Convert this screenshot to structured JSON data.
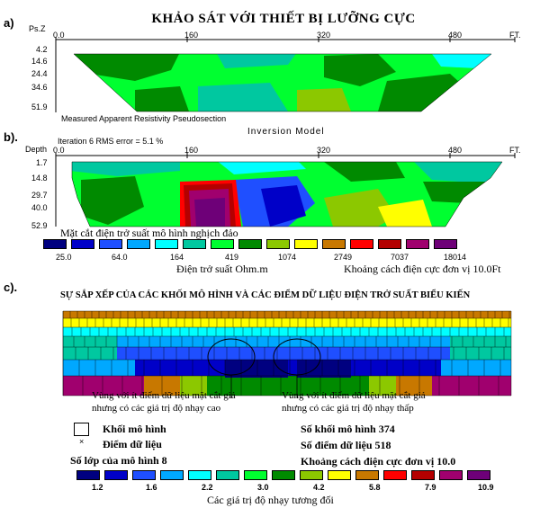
{
  "colors": {
    "scale": [
      "#000080",
      "#0000c8",
      "#1f4fff",
      "#00a8ff",
      "#00ffff",
      "#00c8a0",
      "#00ff30",
      "#008a00",
      "#8cc800",
      "#ffff00",
      "#c87800",
      "#ff0000",
      "#b40000",
      "#a0006e",
      "#6e0078"
    ]
  },
  "panel_a": {
    "tag": "a)",
    "title": "KHẢO SÁT VỚI THIẾT BỊ LƯỠNG CỰC",
    "depth_header": "Ps.Z",
    "x_ticks": [
      "0.0",
      "160",
      "320",
      "480"
    ],
    "x_unit": "FT.",
    "depth_ticks": [
      "4.2",
      "14.6",
      "24.4",
      "34.6",
      "51.9"
    ],
    "caption": "Measured Apparent Resistivity Pseudosection"
  },
  "panel_b": {
    "tag": "b).",
    "title": "Inversion Model",
    "iteration": "Iteration 6 RMS error = 5.1 %",
    "depth_header": "Depth",
    "x_ticks": [
      "0.0",
      "160",
      "320",
      "480"
    ],
    "x_unit": "FT.",
    "depth_ticks": [
      "1.7",
      "14.8",
      "29.7",
      "40.0",
      "52.9"
    ],
    "section_title": "Mặt cắt điện trở suất mô hình nghịch đảo",
    "scale_labels": [
      "25.0",
      "64.0",
      "164",
      "419",
      "1074",
      "2749",
      "7037",
      "18014"
    ],
    "unit_label": "Điện trở suất Ohm.m",
    "spacing_label": "Khoảng cách điện cực đơn vị 10.0Ft"
  },
  "panel_c": {
    "tag": "c).",
    "title": "SỰ SẮP XẾP CỦA CÁC KHỐI MÔ HÌNH VÀ CÁC ĐIỂM DỮ LIỆU ĐIỆN TRỞ SUẤT BIỂU KIẾN",
    "annotation_left_1": "Vùng với ít điểm dữ liệu mặt cắt giả",
    "annotation_left_2": "nhưng có các giá trị độ nhạy cao",
    "annotation_right_1": "Vùng với ít điểm dữ liệu mặt cắt giả",
    "annotation_right_2": "nhưng có các giá trị độ nhạy thấp",
    "legend_block": "Khối mô hình",
    "legend_point": "Điểm dữ liệu",
    "layers": "Số lớp của mô hình 8",
    "blocks_count": "Số khối mô hình 374",
    "points_count": "Số điểm dữ liệu  518",
    "spacing": "Khoảng cách điện cực đơn vị 10.0",
    "scale_labels": [
      "1.2",
      "1.6",
      "2.2",
      "3.0",
      "4.2",
      "5.8",
      "7.9",
      "10.9"
    ],
    "scale_title": "Các giá trị độ nhạy tương đối"
  },
  "chart_data": [
    {
      "type": "heatmap",
      "title": "KHẢO SÁT VỚI THIẾT BỊ LƯỠNG CỰC",
      "xlabel": "FT.",
      "ylabel": "Ps.Z",
      "xlim": [
        0,
        560
      ],
      "x_ticks": [
        0,
        160,
        320,
        480
      ],
      "y_ticks": [
        4.2,
        14.6,
        24.4,
        34.6,
        51.9
      ],
      "caption": "Measured Apparent Resistivity Pseudosection"
    },
    {
      "type": "heatmap",
      "title": "Inversion Model",
      "xlabel": "FT.",
      "ylabel": "Depth",
      "xlim": [
        0,
        560
      ],
      "x_ticks": [
        0,
        160,
        320,
        480
      ],
      "y_ticks": [
        1.7,
        14.8,
        29.7,
        40.0,
        52.9
      ],
      "colorbar_values": [
        25.0,
        64.0,
        164,
        419,
        1074,
        2749,
        7037,
        18014
      ],
      "colorbar_unit": "Ohm.m"
    },
    {
      "type": "heatmap",
      "title": "SỰ SẮP XẾP CỦA CÁC KHỐI MÔ HÌNH VÀ CÁC ĐIỂM DỮ LIỆU ĐIỆN TRỞ SUẤT BIỂU KIẾN",
      "model_layers": 8,
      "model_blocks": 374,
      "data_points": 518,
      "electrode_spacing": 10.0,
      "colorbar_values": [
        1.2,
        1.6,
        2.2,
        3.0,
        4.2,
        5.8,
        7.9,
        10.9
      ]
    }
  ]
}
